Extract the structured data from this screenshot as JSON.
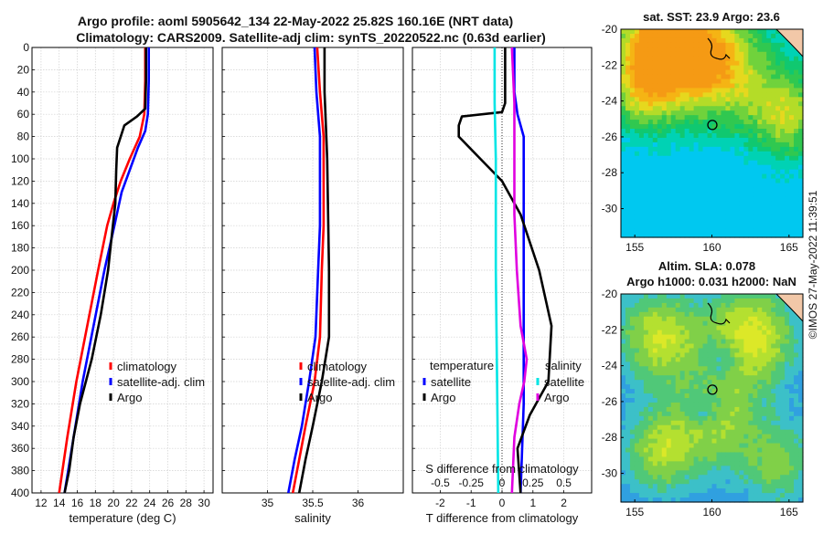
{
  "header": {
    "title_line1": "Argo profile: aoml 5905642_134 22-May-2022 25.82S 160.16E (NRT data)",
    "title_line2": "Climatology: CARS2009. Satellite-adj clim: synTS_20220522.nc (0.63d earlier)"
  },
  "colors": {
    "climatology": "#ff0000",
    "satellite": "#0000ff",
    "argo": "#000000",
    "sal_sat": "#00e5e5",
    "sal_argo": "#e000e0"
  },
  "chart_data": [
    {
      "type": "line",
      "title": "",
      "xlabel": "temperature (deg C)",
      "ylabel": "",
      "xlim": [
        11,
        31
      ],
      "ylim": [
        400,
        0
      ],
      "xticks": [
        12,
        14,
        16,
        18,
        20,
        22,
        24,
        26,
        28,
        30
      ],
      "yticks": [
        0,
        20,
        40,
        60,
        80,
        100,
        120,
        140,
        160,
        180,
        200,
        220,
        240,
        260,
        280,
        300,
        320,
        340,
        360,
        380,
        400
      ],
      "legend": [
        "climatology",
        "satellite-adj. clim",
        "Argo"
      ],
      "series": [
        {
          "name": "climatology",
          "depth": [
            0,
            30,
            60,
            80,
            100,
            120,
            140,
            160,
            200,
            250,
            300,
            350,
            400
          ],
          "values": [
            23.5,
            23.5,
            23.4,
            22.9,
            21.8,
            20.8,
            20.0,
            19.3,
            18.3,
            17.1,
            15.9,
            14.9,
            14.0
          ]
        },
        {
          "name": "satellite-adj. clim",
          "depth": [
            0,
            30,
            60,
            75,
            90,
            110,
            130,
            160,
            200,
            250,
            300,
            350,
            400
          ],
          "values": [
            23.9,
            23.9,
            23.8,
            23.5,
            22.7,
            21.8,
            20.9,
            20.1,
            19.0,
            17.8,
            16.6,
            15.6,
            14.6
          ]
        },
        {
          "name": "Argo",
          "depth": [
            0,
            30,
            55,
            62,
            70,
            90,
            110,
            140,
            170,
            200,
            240,
            280,
            320,
            350,
            380,
            400
          ],
          "values": [
            23.6,
            23.6,
            23.5,
            22.6,
            21.2,
            20.4,
            20.3,
            20.2,
            19.8,
            19.4,
            18.6,
            17.6,
            16.3,
            15.6,
            15.1,
            14.6
          ]
        }
      ]
    },
    {
      "type": "line",
      "xlabel": "salinity",
      "xlim": [
        34.5,
        36.5
      ],
      "ylim": [
        400,
        0
      ],
      "xticks": [
        35,
        35.5,
        36
      ],
      "legend": [
        "climatology",
        "satellite-adj. clim",
        "Argo"
      ],
      "series": [
        {
          "name": "climatology",
          "depth": [
            0,
            40,
            80,
            120,
            160,
            200,
            260,
            300,
            340,
            370,
            400
          ],
          "values": [
            35.55,
            35.58,
            35.62,
            35.62,
            35.62,
            35.6,
            35.58,
            35.52,
            35.42,
            35.35,
            35.28
          ]
        },
        {
          "name": "satellite-adj. clim",
          "depth": [
            0,
            40,
            80,
            120,
            160,
            200,
            260,
            300,
            340,
            370,
            400
          ],
          "values": [
            35.52,
            35.54,
            35.58,
            35.58,
            35.58,
            35.56,
            35.53,
            35.46,
            35.38,
            35.3,
            35.23
          ]
        },
        {
          "name": "Argo",
          "depth": [
            0,
            40,
            60,
            100,
            150,
            200,
            260,
            300,
            340,
            370,
            400
          ],
          "values": [
            35.63,
            35.63,
            35.64,
            35.66,
            35.67,
            35.68,
            35.68,
            35.6,
            35.5,
            35.42,
            35.35
          ]
        }
      ]
    },
    {
      "type": "line",
      "xlabel": "T difference from climatology",
      "xlabel_top": "S difference from climatology",
      "xlim": [
        -2.9,
        2.9
      ],
      "ylim": [
        400,
        0
      ],
      "xticks": [
        -2,
        -1,
        0,
        1,
        2
      ],
      "xticks_top": [
        "-0.5",
        "-0.25",
        "0",
        "0.25",
        "0.5"
      ],
      "legend_temperature": {
        "title": "temperature",
        "items": [
          "satellite",
          "Argo"
        ]
      },
      "legend_salinity": {
        "title": "salinity",
        "items": [
          "satellite",
          "Argo"
        ]
      },
      "series": [
        {
          "name": "temperature satellite",
          "depth": [
            0,
            40,
            60,
            80,
            120,
            200,
            280,
            320,
            400
          ],
          "values": [
            0.4,
            0.4,
            0.5,
            0.7,
            0.7,
            0.7,
            0.7,
            0.7,
            0.6
          ]
        },
        {
          "name": "temperature Argo",
          "depth": [
            0,
            30,
            50,
            58,
            62,
            70,
            80,
            100,
            120,
            150,
            200,
            250,
            300,
            330,
            360,
            400
          ],
          "values": [
            0.1,
            0.1,
            0.1,
            0.0,
            -1.3,
            -1.4,
            -1.4,
            -0.7,
            0.0,
            0.6,
            1.2,
            1.6,
            1.5,
            0.9,
            0.5,
            0.6
          ]
        },
        {
          "name": "salinity satellite",
          "depth": [
            0,
            50,
            100,
            200,
            300,
            400
          ],
          "values": [
            -0.06,
            -0.06,
            -0.05,
            -0.05,
            -0.04,
            -0.03
          ]
        },
        {
          "name": "salinity Argo",
          "depth": [
            0,
            50,
            100,
            150,
            200,
            250,
            280,
            300,
            320,
            350,
            400
          ],
          "values": [
            0.08,
            0.1,
            0.1,
            0.1,
            0.12,
            0.15,
            0.2,
            0.18,
            0.14,
            0.1,
            0.08
          ]
        }
      ]
    }
  ],
  "maps": {
    "sst_title": "sat. SST: 23.9 Argo: 23.6",
    "sla_title1": "Altim. SLA: 0.078",
    "sla_title2": "Argo h1000: 0.031 h2000: NaN",
    "xticks": [
      "155",
      "160",
      "165"
    ],
    "yticks": [
      "-20",
      "-22",
      "-24",
      "-26",
      "-28",
      "-30"
    ]
  },
  "credit": "©IMOS 27-May-2022 11:39:51"
}
